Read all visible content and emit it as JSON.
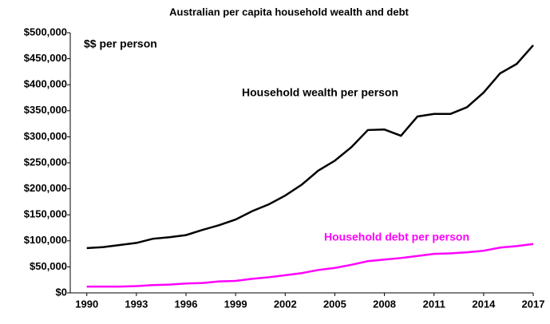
{
  "chart_data": {
    "type": "line",
    "title": "Australian per capita household wealth and debt",
    "y_label": "$$ per person",
    "x": [
      1990,
      1991,
      1992,
      1993,
      1994,
      1995,
      1996,
      1997,
      1998,
      1999,
      2000,
      2001,
      2002,
      2003,
      2004,
      2005,
      2006,
      2007,
      2008,
      2009,
      2010,
      2011,
      2012,
      2013,
      2014,
      2015,
      2016,
      2017
    ],
    "series": [
      {
        "name": "Household wealth per person",
        "color": "#000000",
        "values": [
          86000,
          88000,
          92000,
          96000,
          104000,
          107000,
          111000,
          121000,
          130000,
          141000,
          157000,
          170000,
          187000,
          208000,
          235000,
          254000,
          280000,
          313000,
          314000,
          302000,
          339000,
          344000,
          344000,
          357000,
          385000,
          422000,
          440000,
          476000
        ]
      },
      {
        "name": "Household debt per person",
        "color": "#ff00ff",
        "values": [
          12000,
          12000,
          12000,
          13000,
          15000,
          16000,
          18000,
          19000,
          22000,
          23000,
          27000,
          30000,
          34000,
          38000,
          44000,
          48000,
          54000,
          61000,
          64000,
          67000,
          71000,
          75000,
          76000,
          78000,
          81000,
          87000,
          90000,
          94000
        ]
      }
    ],
    "xlim": [
      1989,
      2017
    ],
    "xticks": [
      1990,
      1993,
      1996,
      1999,
      2002,
      2005,
      2008,
      2011,
      2014,
      2017
    ],
    "ylim": [
      0,
      500000
    ],
    "yticks": [
      {
        "value": 0,
        "label": "$0"
      },
      {
        "value": 50000,
        "label": "$50,000"
      },
      {
        "value": 100000,
        "label": "$100,000"
      },
      {
        "value": 150000,
        "label": "$150,000"
      },
      {
        "value": 200000,
        "label": "$200,000"
      },
      {
        "value": 250000,
        "label": "$250,000"
      },
      {
        "value": 300000,
        "label": "$300,000"
      },
      {
        "value": 350000,
        "label": "$350,000"
      },
      {
        "value": 400000,
        "label": "$400,000"
      },
      {
        "value": 450000,
        "label": "$450,000"
      },
      {
        "value": 500000,
        "label": "$500,000"
      }
    ],
    "grid": false
  }
}
